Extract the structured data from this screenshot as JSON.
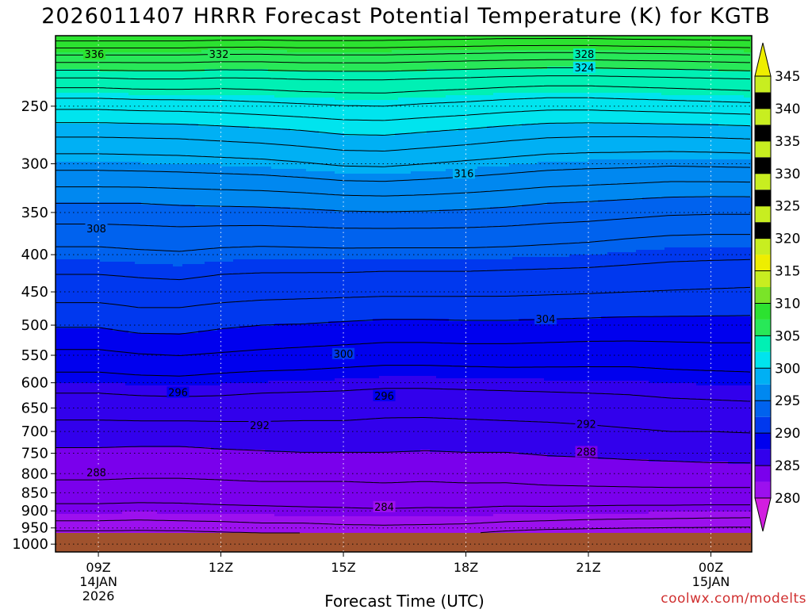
{
  "chart_data": {
    "type": "heatmap",
    "title": "2026011407 HRRR Forecast Potential Temperature (K) for KGTB",
    "xlabel": "Forecast Time (UTC)",
    "ylabel": "",
    "x_ticks": [
      {
        "hour": 9,
        "lines": [
          "09Z",
          "14JAN",
          "2026"
        ]
      },
      {
        "hour": 12,
        "lines": [
          "12Z"
        ]
      },
      {
        "hour": 15,
        "lines": [
          "15Z"
        ]
      },
      {
        "hour": 18,
        "lines": [
          "18Z"
        ]
      },
      {
        "hour": 21,
        "lines": [
          "21Z"
        ]
      },
      {
        "hour": 24,
        "lines": [
          "00Z",
          "15JAN"
        ]
      }
    ],
    "xlim": [
      7.95,
      25.0
    ],
    "y_axis": "pressure (log scale, hPa)",
    "ylim": [
      1025,
      200
    ],
    "y_ticks": [
      250,
      300,
      350,
      400,
      450,
      500,
      550,
      600,
      650,
      700,
      750,
      800,
      850,
      900,
      950,
      1000
    ],
    "grid": "dotted, at each x and y tick",
    "surface_pressure": 965,
    "colorbar": {
      "levels": [
        280,
        285,
        290,
        295,
        300,
        305,
        310,
        315,
        320,
        325,
        330,
        335,
        340,
        345
      ],
      "tick_labels": [
        "280",
        "285",
        "290",
        "295",
        "300",
        "305",
        "310",
        "315",
        "320",
        "325",
        "330",
        "335",
        "340",
        "345"
      ],
      "colors": [
        "#d21ee0",
        "#9c10ee",
        "#7a00ec",
        "#3200ec",
        "#0000ee",
        "#0038ee",
        "#0062ee",
        "#0088f0",
        "#00b0f4",
        "#00e4ee",
        "#00f0b4",
        "#28e858",
        "#2ce230",
        "#7ae428",
        "#c8ee20",
        "#eeee00"
      ],
      "extend": "both"
    },
    "contour_interval": 2,
    "contour_labels": [
      {
        "text": "336",
        "hour": 8.9,
        "p": 212
      },
      {
        "text": "332",
        "hour": 11.95,
        "p": 212
      },
      {
        "text": "328",
        "hour": 20.9,
        "p": 212
      },
      {
        "text": "324",
        "hour": 20.9,
        "p": 221
      },
      {
        "text": "316",
        "hour": 17.95,
        "p": 309
      },
      {
        "text": "308",
        "hour": 8.95,
        "p": 368
      },
      {
        "text": "304",
        "hour": 19.95,
        "p": 490
      },
      {
        "text": "300",
        "hour": 15.0,
        "p": 547
      },
      {
        "text": "296",
        "hour": 10.95,
        "p": 618
      },
      {
        "text": "296",
        "hour": 16.0,
        "p": 625
      },
      {
        "text": "292",
        "hour": 12.95,
        "p": 686
      },
      {
        "text": "292",
        "hour": 20.95,
        "p": 683
      },
      {
        "text": "288",
        "hour": 20.95,
        "p": 746
      },
      {
        "text": "288",
        "hour": 8.95,
        "p": 796
      },
      {
        "text": "284",
        "hour": 16.0,
        "p": 888
      }
    ],
    "profiles": {
      "hours": [
        8,
        9,
        10,
        11,
        12,
        13,
        14,
        15,
        16,
        17,
        18,
        19,
        20,
        21,
        22,
        23,
        24,
        25
      ],
      "pressure_hPa": [
        965,
        940,
        900,
        860,
        820,
        780,
        740,
        700,
        660,
        620,
        580,
        540,
        500,
        460,
        420,
        380,
        340,
        300,
        270,
        250,
        230,
        215,
        200
      ],
      "theta_K": [
        [
          281.5,
          283.5,
          285.3,
          286.7,
          287.9,
          288.9,
          289.9,
          291.2,
          292.5,
          294.0,
          296.0,
          298.0,
          300.2,
          302.3,
          304.3,
          306.6,
          310.0,
          314.8,
          318.8,
          322.5,
          327.5,
          333.0,
          339.5
        ],
        [
          281.5,
          283.5,
          285.3,
          286.7,
          287.9,
          288.9,
          289.9,
          291.2,
          292.5,
          294.0,
          296.0,
          298.0,
          300.2,
          302.3,
          304.3,
          306.6,
          310.0,
          314.8,
          318.8,
          322.5,
          327.5,
          333.0,
          339.5
        ],
        [
          281.4,
          283.4,
          285.2,
          286.6,
          287.8,
          288.8,
          289.8,
          291.2,
          292.6,
          294.2,
          296.3,
          298.4,
          300.8,
          302.6,
          304.5,
          306.8,
          310.0,
          314.9,
          318.9,
          322.7,
          327.8,
          333.0,
          339.5
        ],
        [
          281.5,
          283.5,
          285.3,
          286.6,
          287.8,
          288.8,
          289.8,
          291.2,
          292.6,
          294.3,
          296.4,
          298.6,
          300.8,
          302.6,
          304.7,
          306.9,
          310.2,
          315.0,
          319.0,
          322.8,
          327.8,
          333.0,
          339.5
        ],
        [
          281.8,
          283.6,
          285.4,
          286.8,
          287.9,
          288.9,
          290.0,
          291.3,
          292.6,
          294.2,
          296.1,
          298.3,
          300.3,
          302.3,
          304.3,
          306.7,
          310.3,
          315.2,
          319.3,
          323.0,
          327.5,
          332.8,
          339.3
        ],
        [
          282.0,
          283.8,
          285.5,
          286.9,
          288.0,
          289.1,
          290.1,
          291.3,
          292.6,
          294.0,
          295.9,
          298.0,
          300.0,
          302.1,
          304.2,
          306.6,
          310.4,
          315.4,
          319.6,
          323.3,
          327.6,
          332.8,
          339.2
        ],
        [
          282.0,
          283.8,
          285.6,
          287.0,
          288.0,
          289.2,
          290.2,
          291.3,
          292.5,
          293.9,
          295.8,
          297.8,
          299.9,
          302.0,
          304.2,
          306.7,
          310.6,
          315.8,
          320.0,
          323.6,
          327.9,
          333.0,
          339.4
        ],
        [
          282.4,
          284.0,
          285.7,
          287.0,
          288.0,
          289.2,
          290.2,
          291.3,
          292.5,
          293.8,
          295.6,
          297.6,
          299.7,
          301.9,
          304.2,
          306.8,
          310.9,
          316.3,
          320.5,
          323.9,
          328.0,
          333.0,
          339.4
        ],
        [
          282.6,
          284.1,
          285.8,
          287.1,
          288.1,
          289.2,
          290.2,
          291.2,
          292.3,
          293.6,
          295.4,
          297.4,
          299.5,
          301.8,
          304.1,
          306.8,
          311.0,
          316.4,
          320.6,
          324.0,
          328.0,
          333.0,
          339.3
        ],
        [
          282.3,
          284.0,
          285.7,
          287.0,
          288.0,
          289.1,
          290.1,
          291.1,
          292.3,
          293.6,
          295.4,
          297.4,
          299.5,
          301.8,
          304.1,
          306.8,
          310.9,
          316.0,
          320.2,
          323.6,
          327.7,
          332.8,
          339.1
        ],
        [
          282.2,
          283.9,
          285.7,
          287.1,
          288.1,
          289.2,
          290.2,
          291.2,
          292.4,
          293.7,
          295.5,
          297.5,
          299.6,
          301.8,
          304.1,
          306.8,
          310.7,
          315.6,
          319.8,
          323.3,
          327.5,
          332.6,
          339.0
        ],
        [
          281.5,
          283.6,
          285.5,
          287.0,
          288.1,
          289.2,
          290.2,
          291.3,
          292.5,
          293.8,
          295.6,
          297.5,
          299.6,
          301.8,
          304.0,
          306.7,
          310.4,
          315.2,
          319.3,
          322.9,
          327.2,
          332.4,
          338.8
        ],
        [
          281.0,
          283.4,
          285.5,
          287.1,
          288.3,
          289.4,
          290.4,
          291.4,
          292.6,
          293.9,
          295.6,
          297.4,
          299.5,
          301.7,
          303.9,
          306.5,
          310.0,
          314.8,
          318.9,
          322.6,
          327.0,
          332.3,
          338.8
        ],
        [
          280.8,
          283.2,
          285.4,
          287.1,
          288.4,
          289.5,
          290.5,
          291.6,
          292.7,
          294.0,
          295.6,
          297.3,
          299.4,
          301.6,
          303.8,
          306.3,
          309.8,
          314.6,
          318.8,
          322.6,
          327.0,
          332.3,
          338.8
        ],
        [
          280.5,
          283.1,
          285.3,
          287.1,
          288.5,
          289.6,
          290.7,
          291.8,
          292.9,
          294.1,
          295.6,
          297.3,
          299.3,
          301.5,
          303.6,
          306.0,
          309.5,
          314.5,
          318.8,
          322.8,
          327.2,
          332.5,
          339.0
        ],
        [
          280.3,
          283.0,
          285.3,
          287.1,
          288.6,
          289.7,
          290.8,
          292.0,
          293.1,
          294.3,
          295.8,
          297.4,
          299.3,
          301.4,
          303.4,
          305.7,
          309.2,
          314.3,
          318.9,
          323.0,
          327.4,
          332.6,
          339.1
        ],
        [
          280.2,
          282.9,
          285.2,
          287.1,
          288.6,
          289.8,
          290.9,
          292.0,
          293.2,
          294.4,
          295.9,
          297.5,
          299.3,
          301.3,
          303.3,
          305.6,
          309.1,
          314.4,
          319.0,
          323.2,
          327.6,
          332.8,
          339.2
        ],
        [
          280.1,
          282.8,
          285.2,
          287.1,
          288.6,
          289.8,
          291.0,
          292.1,
          293.3,
          294.5,
          296.0,
          297.5,
          299.3,
          301.2,
          303.2,
          305.6,
          309.1,
          314.5,
          319.2,
          323.4,
          327.8,
          333.0,
          339.3
        ]
      ]
    }
  },
  "credit": "coolwx.com/modelts"
}
